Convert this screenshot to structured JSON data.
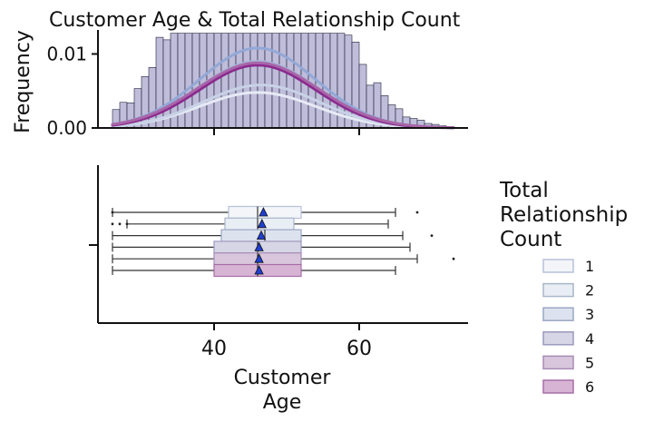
{
  "chart_data": [
    {
      "type": "histogram",
      "title": "Customer Age & Total Relationship Count",
      "xlabel": "",
      "ylabel": "Frequency",
      "xlim": [
        24,
        75
      ],
      "ylim": [
        0,
        0.013
      ],
      "yticks": [
        {
          "value": 0.0,
          "label": "0.00"
        },
        {
          "value": 0.01,
          "label": "0.01"
        }
      ],
      "xticks": [
        40,
        60
      ],
      "kde_series": [
        {
          "group": "1",
          "mean": 46,
          "sd": 8.0,
          "peak": 0.0048
        },
        {
          "group": "2",
          "mean": 46.5,
          "sd": 8.0,
          "peak": 0.0058
        },
        {
          "group": "3",
          "mean": 46,
          "sd": 8.2,
          "peak": 0.009
        },
        {
          "group": "4",
          "mean": 46,
          "sd": 8.0,
          "peak": 0.0108
        },
        {
          "group": "5",
          "mean": 46,
          "sd": 8.0,
          "peak": 0.0085
        },
        {
          "group": "6",
          "mean": 46,
          "sd": 8.3,
          "peak": 0.0088
        }
      ]
    },
    {
      "type": "boxplot",
      "xlabel": "Customer\nAge",
      "xlim": [
        24,
        75
      ],
      "xticks": [
        {
          "value": 40,
          "label": "40"
        },
        {
          "value": 60,
          "label": "60"
        }
      ],
      "series": [
        {
          "name": "1",
          "whisker_low": 26,
          "q1": 42,
          "median": 46,
          "q3": 52,
          "whisker_high": 65,
          "mean": 46.8,
          "outliers": [
            26,
            68
          ]
        },
        {
          "name": "2",
          "whisker_low": 28,
          "q1": 41.5,
          "median": 46,
          "q3": 51,
          "whisker_high": 64,
          "mean": 46.6,
          "outliers": [
            26,
            27,
            28
          ]
        },
        {
          "name": "3",
          "whisker_low": 26,
          "q1": 41,
          "median": 47,
          "q3": 52,
          "whisker_high": 66,
          "mean": 46.5,
          "outliers": [
            70
          ]
        },
        {
          "name": "4",
          "whisker_low": 26,
          "q1": 40,
          "median": 46,
          "q3": 52,
          "whisker_high": 67,
          "mean": 46.2,
          "outliers": []
        },
        {
          "name": "5",
          "whisker_low": 26,
          "q1": 40,
          "median": 46,
          "q3": 52,
          "whisker_high": 68,
          "mean": 46.2,
          "outliers": [
            73
          ]
        },
        {
          "name": "6",
          "whisker_low": 26,
          "q1": 40,
          "median": 46,
          "q3": 52,
          "whisker_high": 65,
          "mean": 46.2,
          "outliers": []
        }
      ]
    }
  ],
  "legend": {
    "title": "Total\nRelationship\nCount",
    "placement": "right",
    "items": [
      {
        "label": "1",
        "fill": "#f3f5f9",
        "stroke": "#b7c2d8"
      },
      {
        "label": "2",
        "fill": "#e9eef4",
        "stroke": "#a8b6c8"
      },
      {
        "label": "3",
        "fill": "#dde3ee",
        "stroke": "#9aa6c4"
      },
      {
        "label": "4",
        "fill": "#d7d6e6",
        "stroke": "#9c99be"
      },
      {
        "label": "5",
        "fill": "#d8c6dd",
        "stroke": "#a88cb4"
      },
      {
        "label": "6",
        "fill": "#d8b4d4",
        "stroke": "#a56ea6"
      }
    ]
  },
  "colors": {
    "hist_fill": "#b4b2d4",
    "hist_edge": "#22223a",
    "kde": [
      "#e6eaf4",
      "#c8d2e6",
      "#a7b4d8",
      "#93a8d6",
      "#8a2a8e",
      "#a866a8"
    ],
    "mean_marker": "#1f3fd0"
  }
}
